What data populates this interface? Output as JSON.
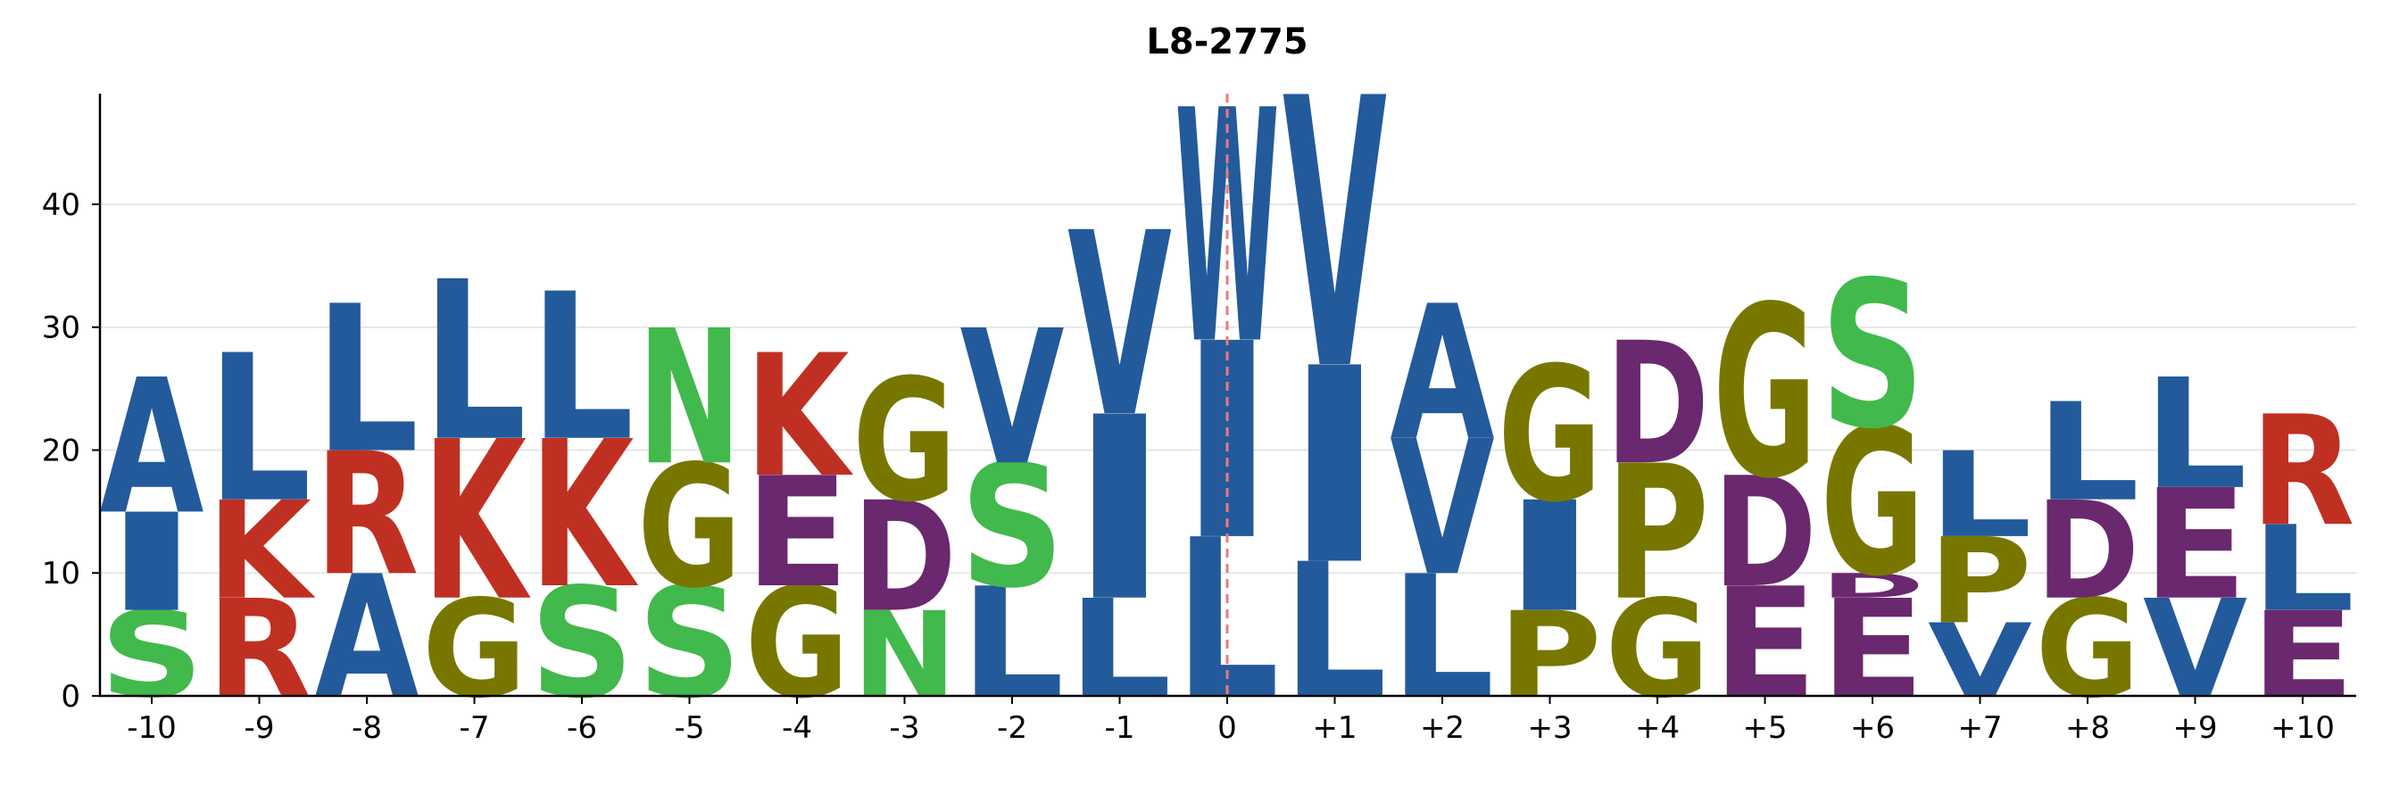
{
  "chart_data": {
    "type": "sequence-logo",
    "title": "L8-2775",
    "xlabel": "",
    "ylabel": "",
    "ylim": [
      0,
      49
    ],
    "yticks": [
      0,
      10,
      20,
      30,
      40
    ],
    "grid": "horizontal",
    "reference_line": {
      "position": "0",
      "style": "dashed",
      "color": "#f07878"
    },
    "color_map": {
      "hydrophobic": "#235a9b",
      "positive": "#c03022",
      "polar": "#42b94c",
      "special": "#777700",
      "negative": "#6a286e"
    },
    "positions": [
      {
        "label": "-10",
        "stack": [
          {
            "letter": "S",
            "value": 7,
            "color": "#42b94c"
          },
          {
            "letter": "I",
            "value": 8,
            "color": "#235a9b"
          },
          {
            "letter": "A",
            "value": 11,
            "color": "#235a9b"
          }
        ]
      },
      {
        "label": "-9",
        "stack": [
          {
            "letter": "R",
            "value": 8,
            "color": "#c03022"
          },
          {
            "letter": "K",
            "value": 8,
            "color": "#c03022"
          },
          {
            "letter": "L",
            "value": 12,
            "color": "#235a9b"
          }
        ]
      },
      {
        "label": "-8",
        "stack": [
          {
            "letter": "A",
            "value": 10,
            "color": "#235a9b"
          },
          {
            "letter": "R",
            "value": 10,
            "color": "#c03022"
          },
          {
            "letter": "L",
            "value": 12,
            "color": "#235a9b"
          }
        ]
      },
      {
        "label": "-7",
        "stack": [
          {
            "letter": "G",
            "value": 8,
            "color": "#777700"
          },
          {
            "letter": "K",
            "value": 13,
            "color": "#c03022"
          },
          {
            "letter": "L",
            "value": 13,
            "color": "#235a9b"
          }
        ]
      },
      {
        "label": "-6",
        "stack": [
          {
            "letter": "S",
            "value": 9,
            "color": "#42b94c"
          },
          {
            "letter": "K",
            "value": 12,
            "color": "#c03022"
          },
          {
            "letter": "L",
            "value": 12,
            "color": "#235a9b"
          }
        ]
      },
      {
        "label": "-5",
        "stack": [
          {
            "letter": "S",
            "value": 9,
            "color": "#42b94c"
          },
          {
            "letter": "G",
            "value": 10,
            "color": "#777700"
          },
          {
            "letter": "N",
            "value": 11,
            "color": "#42b94c"
          }
        ]
      },
      {
        "label": "-4",
        "stack": [
          {
            "letter": "G",
            "value": 9,
            "color": "#777700"
          },
          {
            "letter": "E",
            "value": 9,
            "color": "#6a286e"
          },
          {
            "letter": "K",
            "value": 10,
            "color": "#c03022"
          }
        ]
      },
      {
        "label": "-3",
        "stack": [
          {
            "letter": "N",
            "value": 7,
            "color": "#42b94c"
          },
          {
            "letter": "D",
            "value": 9,
            "color": "#6a286e"
          },
          {
            "letter": "G",
            "value": 10,
            "color": "#777700"
          }
        ]
      },
      {
        "label": "-2",
        "stack": [
          {
            "letter": "L",
            "value": 9,
            "color": "#235a9b"
          },
          {
            "letter": "S",
            "value": 10,
            "color": "#42b94c"
          },
          {
            "letter": "V",
            "value": 11,
            "color": "#235a9b"
          }
        ]
      },
      {
        "label": "-1",
        "stack": [
          {
            "letter": "L",
            "value": 8,
            "color": "#235a9b"
          },
          {
            "letter": "I",
            "value": 15,
            "color": "#235a9b"
          },
          {
            "letter": "V",
            "value": 15,
            "color": "#235a9b"
          }
        ]
      },
      {
        "label": "0",
        "stack": [
          {
            "letter": "L",
            "value": 13,
            "color": "#235a9b"
          },
          {
            "letter": "I",
            "value": 16,
            "color": "#235a9b"
          },
          {
            "letter": "W",
            "value": 19,
            "color": "#235a9b"
          }
        ]
      },
      {
        "label": "+1",
        "stack": [
          {
            "letter": "L",
            "value": 11,
            "color": "#235a9b"
          },
          {
            "letter": "I",
            "value": 16,
            "color": "#235a9b"
          },
          {
            "letter": "V",
            "value": 22,
            "color": "#235a9b"
          }
        ]
      },
      {
        "label": "+2",
        "stack": [
          {
            "letter": "L",
            "value": 10,
            "color": "#235a9b"
          },
          {
            "letter": "V",
            "value": 11,
            "color": "#235a9b"
          },
          {
            "letter": "A",
            "value": 11,
            "color": "#235a9b"
          }
        ]
      },
      {
        "label": "+3",
        "stack": [
          {
            "letter": "P",
            "value": 7,
            "color": "#777700"
          },
          {
            "letter": "I",
            "value": 9,
            "color": "#235a9b"
          },
          {
            "letter": "G",
            "value": 11,
            "color": "#777700"
          }
        ]
      },
      {
        "label": "+4",
        "stack": [
          {
            "letter": "G",
            "value": 8,
            "color": "#777700"
          },
          {
            "letter": "P",
            "value": 11,
            "color": "#777700"
          },
          {
            "letter": "D",
            "value": 10,
            "color": "#6a286e"
          }
        ]
      },
      {
        "label": "+5",
        "stack": [
          {
            "letter": "E",
            "value": 9,
            "color": "#6a286e"
          },
          {
            "letter": "D",
            "value": 9,
            "color": "#6a286e"
          },
          {
            "letter": "G",
            "value": 14,
            "color": "#777700"
          }
        ]
      },
      {
        "label": "+6",
        "stack": [
          {
            "letter": "E",
            "value": 8,
            "color": "#6a286e"
          },
          {
            "letter": "D",
            "value": 2,
            "color": "#6a286e"
          },
          {
            "letter": "G",
            "value": 12,
            "color": "#777700"
          },
          {
            "letter": "S",
            "value": 12,
            "color": "#42b94c"
          }
        ]
      },
      {
        "label": "+7",
        "stack": [
          {
            "letter": "V",
            "value": 6,
            "color": "#235a9b"
          },
          {
            "letter": "P",
            "value": 7,
            "color": "#777700"
          },
          {
            "letter": "L",
            "value": 7,
            "color": "#235a9b"
          }
        ]
      },
      {
        "label": "+8",
        "stack": [
          {
            "letter": "G",
            "value": 8,
            "color": "#777700"
          },
          {
            "letter": "D",
            "value": 8,
            "color": "#6a286e"
          },
          {
            "letter": "L",
            "value": 8,
            "color": "#235a9b"
          }
        ]
      },
      {
        "label": "+9",
        "stack": [
          {
            "letter": "V",
            "value": 8,
            "color": "#235a9b"
          },
          {
            "letter": "E",
            "value": 9,
            "color": "#6a286e"
          },
          {
            "letter": "L",
            "value": 9,
            "color": "#235a9b"
          }
        ]
      },
      {
        "label": "+10",
        "stack": [
          {
            "letter": "E",
            "value": 7,
            "color": "#6a286e"
          },
          {
            "letter": "L",
            "value": 7,
            "color": "#235a9b"
          },
          {
            "letter": "R",
            "value": 9,
            "color": "#c03022"
          }
        ]
      }
    ]
  }
}
